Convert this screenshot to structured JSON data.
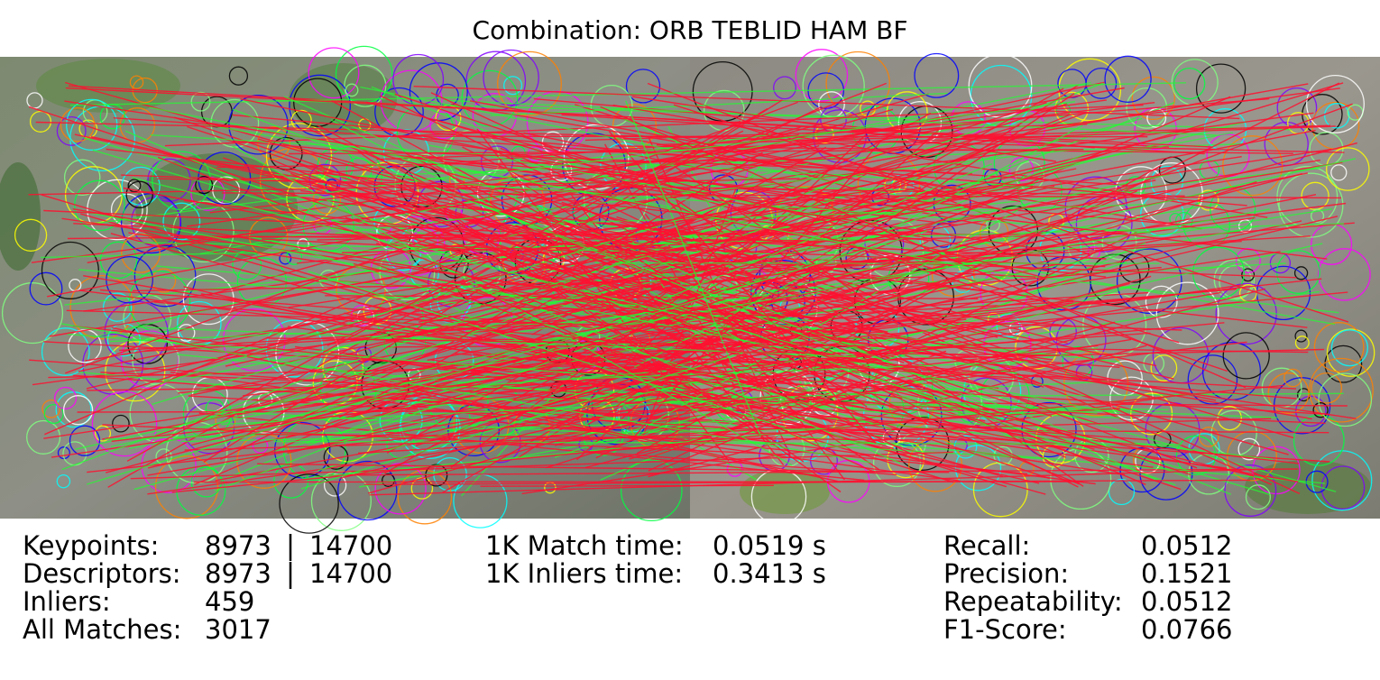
{
  "title": "Combination: ORB TEBLID HAM BF",
  "left_column": [
    {
      "label": "Keypoints:",
      "values": [
        8973,
        14700
      ]
    },
    {
      "label": "Descriptors:",
      "values": [
        8973,
        14700
      ]
    },
    {
      "label": "Inliers:",
      "values": [
        459
      ]
    },
    {
      "label": "All Matches:",
      "values": [
        3017
      ]
    }
  ],
  "middle_column": [
    {
      "label": "1K Match time:",
      "value": "0.0519 s"
    },
    {
      "label": "1K Inliers time:",
      "value": "0.3413 s"
    }
  ],
  "right_column": [
    {
      "label": "Recall:",
      "value": 0.0512
    },
    {
      "label": "Precision:",
      "value": 0.1521
    },
    {
      "label": "Repeatability:",
      "value": 0.0512
    },
    {
      "label": "F1-Score:",
      "value": 0.0766
    }
  ]
}
